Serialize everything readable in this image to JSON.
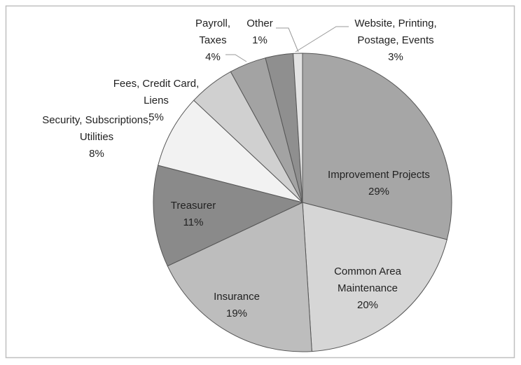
{
  "chart_data": {
    "type": "pie",
    "categories": [
      "Improvement Projects",
      "Common Area Maintenance",
      "Insurance",
      "Treasurer",
      "Security, Subscriptions, Utilities",
      "Fees, Credit Card, Liens",
      "Payroll, Taxes",
      "Website, Printing, Postage, Events",
      "Other"
    ],
    "values": [
      29,
      20,
      19,
      11,
      8,
      5,
      4,
      3,
      1
    ],
    "value_labels": [
      "29%",
      "20%",
      "19%",
      "11%",
      "8%",
      "5%",
      "4%",
      "3%",
      "1%"
    ],
    "colors": [
      "#a6a6a6",
      "#d6d6d6",
      "#bdbdbd",
      "#8a8a8a",
      "#f2f2f2",
      "#d0d0d0",
      "#a3a3a3",
      "#8f8f8f",
      "#e3e3e3"
    ]
  }
}
